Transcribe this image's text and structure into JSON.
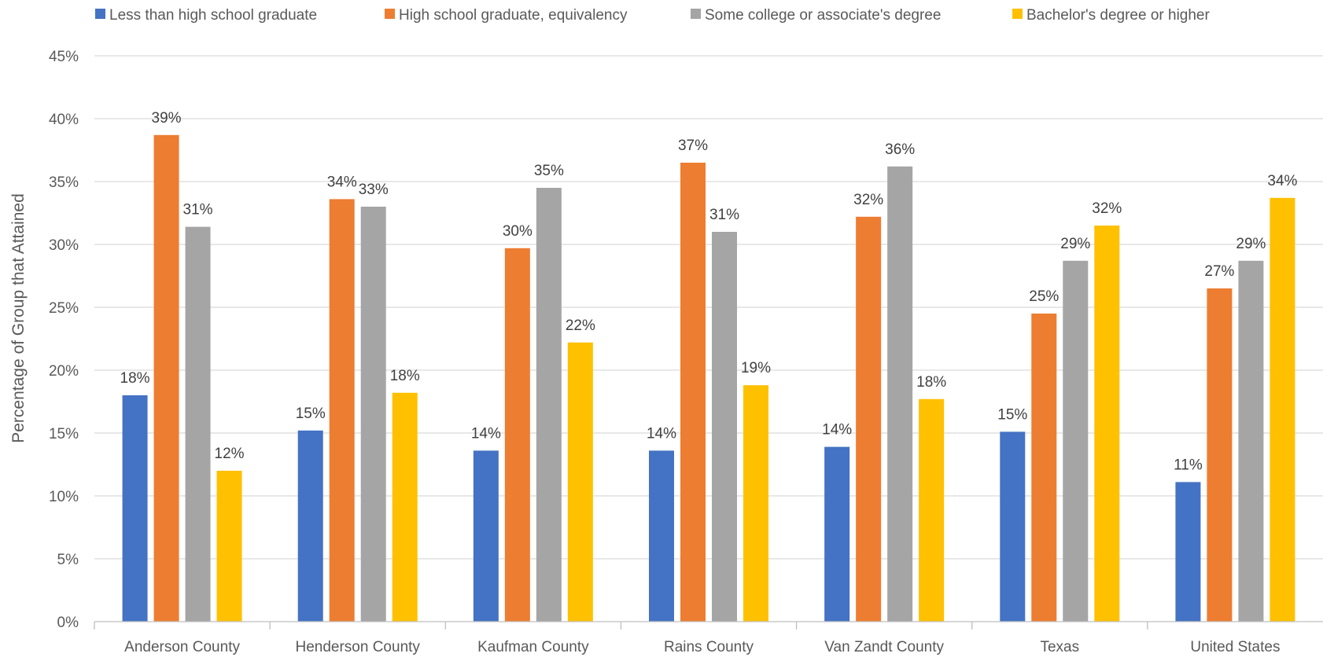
{
  "chart_data": {
    "type": "bar",
    "ylabel": "Percentage of Group that Attained",
    "ylim": [
      0,
      45
    ],
    "yticks": [
      "0%",
      "5%",
      "10%",
      "15%",
      "20%",
      "25%",
      "30%",
      "35%",
      "40%",
      "45%"
    ],
    "grid": true,
    "legend_position": "top",
    "categories": [
      "Anderson County",
      "Henderson County",
      "Kaufman County",
      "Rains County",
      "Van Zandt County",
      "Texas",
      "United States"
    ],
    "series": [
      {
        "name": "Less than high school graduate",
        "color": "#4472C4",
        "values": [
          18.0,
          15.2,
          13.6,
          13.6,
          13.9,
          15.1,
          11.1
        ],
        "labels": [
          "18%",
          "15%",
          "14%",
          "14%",
          "14%",
          "15%",
          "11%"
        ]
      },
      {
        "name": "High school graduate, equivalency",
        "color": "#ED7D31",
        "values": [
          38.7,
          33.6,
          29.7,
          36.5,
          32.2,
          24.5,
          26.5
        ],
        "labels": [
          "39%",
          "34%",
          "30%",
          "37%",
          "32%",
          "25%",
          "27%"
        ]
      },
      {
        "name": "Some college or associate's degree",
        "color": "#A5A5A5",
        "values": [
          31.4,
          33.0,
          34.5,
          31.0,
          36.2,
          28.7,
          28.7
        ],
        "labels": [
          "31%",
          "33%",
          "35%",
          "31%",
          "36%",
          "29%",
          "29%"
        ]
      },
      {
        "name": "Bachelor's degree or higher",
        "color": "#FFC000",
        "values": [
          12.0,
          18.2,
          22.2,
          18.8,
          17.7,
          31.5,
          33.7
        ],
        "labels": [
          "12%",
          "18%",
          "22%",
          "19%",
          "18%",
          "32%",
          "34%"
        ]
      }
    ]
  }
}
